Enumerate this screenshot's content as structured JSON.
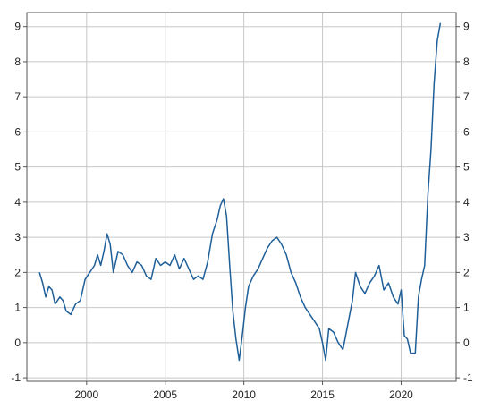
{
  "chart_data": {
    "type": "line",
    "title": "",
    "xlabel": "",
    "ylabel": "",
    "xlim": [
      1996.2,
      2023.5
    ],
    "ylim": [
      -1.1,
      9.4
    ],
    "grid": true,
    "legend": "none",
    "y_ticks": [
      "-1",
      "0",
      "1",
      "2",
      "3",
      "4",
      "5",
      "6",
      "7",
      "8",
      "9"
    ],
    "x_ticks": [
      "2000",
      "2005",
      "2010",
      "2015",
      "2020"
    ],
    "line_color": "#1f5f99",
    "series": [
      {
        "x": [
          1997.0,
          1997.2,
          1997.4,
          1997.6,
          1997.8,
          1998.0,
          1998.3,
          1998.5,
          1998.7,
          1999.0,
          1999.3,
          1999.6,
          1999.9,
          2000.2,
          2000.5,
          2000.7,
          2000.9,
          2001.1,
          2001.3,
          2001.5,
          2001.7,
          2002.0,
          2002.3,
          2002.6,
          2002.9,
          2003.2,
          2003.5,
          2003.8,
          2004.1,
          2004.4,
          2004.7,
          2005.0,
          2005.3,
          2005.6,
          2005.9,
          2006.2,
          2006.5,
          2006.8,
          2007.1,
          2007.4,
          2007.7,
          2008.0,
          2008.3,
          2008.5,
          2008.7,
          2008.9,
          2009.1,
          2009.3,
          2009.5,
          2009.7,
          2009.9,
          2010.1,
          2010.3,
          2010.6,
          2010.9,
          2011.2,
          2011.5,
          2011.8,
          2012.1,
          2012.4,
          2012.7,
          2013.0,
          2013.3,
          2013.6,
          2013.9,
          2014.2,
          2014.5,
          2014.8,
          2015.0,
          2015.2,
          2015.4,
          2015.7,
          2016.0,
          2016.3,
          2016.6,
          2016.9,
          2017.1,
          2017.4,
          2017.7,
          2018.0,
          2018.3,
          2018.6,
          2018.9,
          2019.2,
          2019.5,
          2019.8,
          2020.0,
          2020.2,
          2020.4,
          2020.6,
          2020.9,
          2021.1,
          2021.3,
          2021.5,
          2021.7,
          2021.9,
          2022.1,
          2022.3,
          2022.5
        ],
        "y": [
          2.0,
          1.7,
          1.3,
          1.6,
          1.5,
          1.1,
          1.3,
          1.2,
          0.9,
          0.8,
          1.1,
          1.2,
          1.8,
          2.0,
          2.2,
          2.5,
          2.2,
          2.6,
          3.1,
          2.8,
          2.0,
          2.6,
          2.5,
          2.2,
          2.0,
          2.3,
          2.2,
          1.9,
          1.8,
          2.4,
          2.2,
          2.3,
          2.2,
          2.5,
          2.1,
          2.4,
          2.1,
          1.8,
          1.9,
          1.8,
          2.3,
          3.1,
          3.5,
          3.9,
          4.1,
          3.6,
          2.2,
          0.9,
          0.1,
          -0.5,
          0.2,
          1.0,
          1.6,
          1.9,
          2.1,
          2.4,
          2.7,
          2.9,
          3.0,
          2.8,
          2.5,
          2.0,
          1.7,
          1.3,
          1.0,
          0.8,
          0.6,
          0.4,
          0.0,
          -0.5,
          0.4,
          0.3,
          0.0,
          -0.2,
          0.5,
          1.2,
          2.0,
          1.6,
          1.4,
          1.7,
          1.9,
          2.2,
          1.5,
          1.7,
          1.3,
          1.1,
          1.5,
          0.2,
          0.1,
          -0.3,
          -0.3,
          1.3,
          1.8,
          2.2,
          4.2,
          5.5,
          7.4,
          8.6,
          9.1
        ]
      }
    ]
  }
}
